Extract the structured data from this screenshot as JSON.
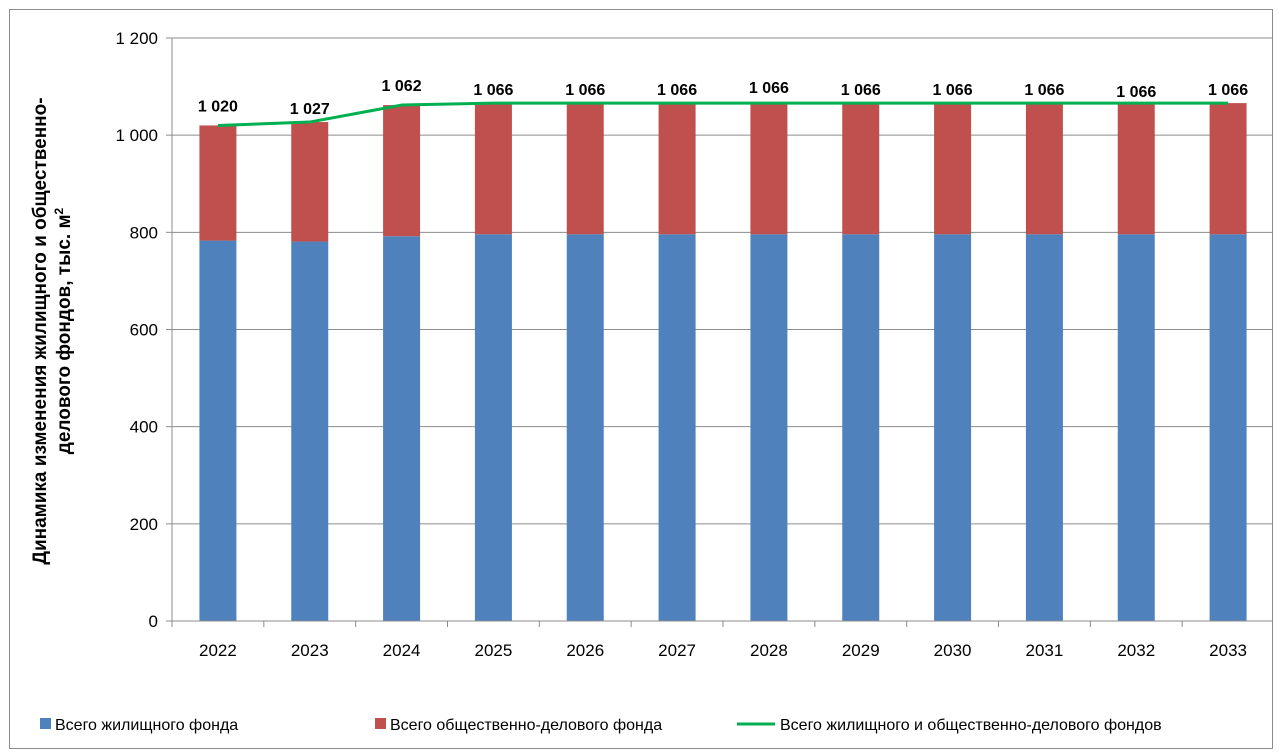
{
  "chart_data": {
    "type": "bar",
    "stacked": true,
    "categories": [
      "2022",
      "2023",
      "2024",
      "2025",
      "2026",
      "2027",
      "2028",
      "2029",
      "2030",
      "2031",
      "2032",
      "2033"
    ],
    "series": [
      {
        "name": "Всего жилищного фонда",
        "kind": "bar",
        "color": "#4f81bd",
        "values": [
          783,
          781,
          792,
          796,
          796,
          796,
          796,
          796,
          796,
          796,
          796,
          796
        ]
      },
      {
        "name": "Всего общественно-делового фонда",
        "kind": "bar",
        "color": "#c0504d",
        "values": [
          237,
          246,
          270,
          270,
          270,
          270,
          270,
          270,
          270,
          270,
          270,
          270
        ]
      },
      {
        "name": "Всего жилищного и общественно-делового фондов",
        "kind": "line",
        "color": "#00b050",
        "values": [
          1020,
          1027,
          1062,
          1066,
          1066,
          1066,
          1066,
          1066,
          1066,
          1066,
          1066,
          1066
        ]
      }
    ],
    "data_labels": [
      "1 020",
      "1 027",
      "1 062",
      "1 066",
      "1 066",
      "1 066",
      "1 066",
      "1 066",
      "1 066",
      "1 066",
      "1 066",
      "1 066"
    ],
    "ylabel_line1": "Динамика изменения жилищного и общественно-",
    "ylabel_line2": "делового фондов, тыс. м",
    "ylabel_sup": "2",
    "ylim": [
      0,
      1200
    ],
    "yticks": [
      0,
      200,
      400,
      600,
      800,
      1000,
      1200
    ],
    "ytick_labels": [
      "0",
      "200",
      "400",
      "600",
      "800",
      "1 000",
      "1 200"
    ],
    "grid": true,
    "legend_position": "bottom"
  }
}
